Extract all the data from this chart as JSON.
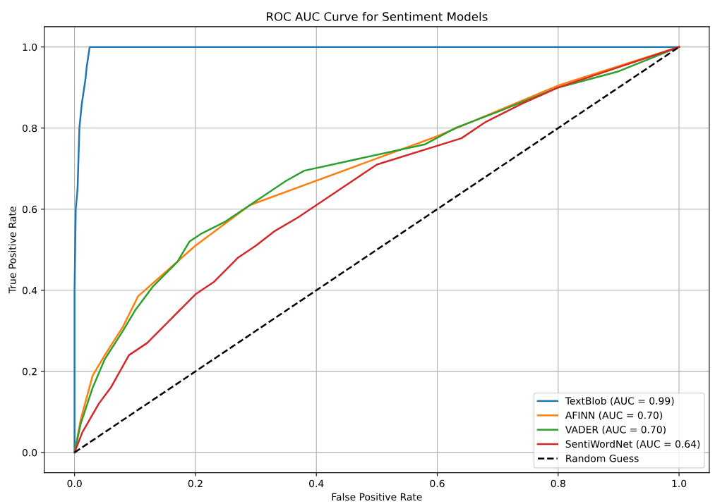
{
  "chart_data": {
    "type": "line",
    "title": "ROC AUC Curve for Sentiment Models",
    "xlabel": "False Positive Rate",
    "ylabel": "True Positive Rate",
    "xlim": [
      -0.05,
      1.05
    ],
    "ylim": [
      -0.05,
      1.05
    ],
    "xticks": [
      {
        "value": 0,
        "label": "0.0"
      },
      {
        "value": 0.2,
        "label": "0.2"
      },
      {
        "value": 0.4,
        "label": "0.4"
      },
      {
        "value": 0.6,
        "label": "0.6"
      },
      {
        "value": 0.8,
        "label": "0.8"
      },
      {
        "value": 1,
        "label": "1.0"
      }
    ],
    "yticks": [
      {
        "value": 0,
        "label": "0.0"
      },
      {
        "value": 0.2,
        "label": "0.2"
      },
      {
        "value": 0.4,
        "label": "0.4"
      },
      {
        "value": 0.6,
        "label": "0.6"
      },
      {
        "value": 0.8,
        "label": "0.8"
      },
      {
        "value": 1,
        "label": "1.0"
      }
    ],
    "grid": true,
    "legend": "bottom right",
    "marker": "none",
    "series": [
      {
        "name": "TextBlob (AUC = 0.99)",
        "color": "#1f77b4",
        "line_style": "solid",
        "x": [
          0,
          0,
          0.002,
          0.005,
          0.008,
          0.01,
          0.012,
          0.018,
          0.02,
          0.025,
          1
        ],
        "values": [
          0,
          0.4,
          0.6,
          0.65,
          0.8,
          0.83,
          0.86,
          0.92,
          0.95,
          1,
          1
        ]
      },
      {
        "name": "AFINN (AUC = 0.70)",
        "color": "#ff7f0e",
        "line_style": "solid",
        "x": [
          0,
          0.01,
          0.03,
          0.05,
          0.08,
          0.105,
          0.2,
          0.29,
          0.6,
          0.8,
          1
        ],
        "values": [
          0,
          0.08,
          0.19,
          0.24,
          0.31,
          0.385,
          0.51,
          0.61,
          0.78,
          0.905,
          1
        ]
      },
      {
        "name": "VADER (AUC = 0.70)",
        "color": "#2ca02c",
        "line_style": "solid",
        "x": [
          0,
          0.01,
          0.03,
          0.05,
          0.08,
          0.1,
          0.13,
          0.17,
          0.19,
          0.21,
          0.25,
          0.29,
          0.32,
          0.35,
          0.38,
          0.58,
          0.63,
          0.7,
          0.8,
          0.9,
          1
        ],
        "values": [
          0,
          0.07,
          0.16,
          0.23,
          0.3,
          0.35,
          0.41,
          0.47,
          0.52,
          0.54,
          0.57,
          0.61,
          0.64,
          0.67,
          0.695,
          0.76,
          0.8,
          0.84,
          0.9,
          0.94,
          1
        ]
      },
      {
        "name": "SentiWordNet (AUC = 0.64)",
        "color": "#d62728",
        "line_style": "solid",
        "x": [
          0,
          0.013,
          0.04,
          0.06,
          0.09,
          0.12,
          0.16,
          0.2,
          0.23,
          0.27,
          0.3,
          0.33,
          0.37,
          0.4,
          0.43,
          0.47,
          0.5,
          0.64,
          0.68,
          0.74,
          0.8,
          0.9,
          1
        ],
        "values": [
          0,
          0.05,
          0.12,
          0.16,
          0.24,
          0.27,
          0.33,
          0.39,
          0.42,
          0.48,
          0.51,
          0.545,
          0.58,
          0.61,
          0.64,
          0.68,
          0.71,
          0.775,
          0.815,
          0.86,
          0.9,
          0.95,
          1
        ]
      },
      {
        "name": "Random Guess",
        "color": "#000000",
        "line_style": "dashed",
        "x": [
          0,
          1
        ],
        "values": [
          0,
          1
        ]
      }
    ]
  }
}
